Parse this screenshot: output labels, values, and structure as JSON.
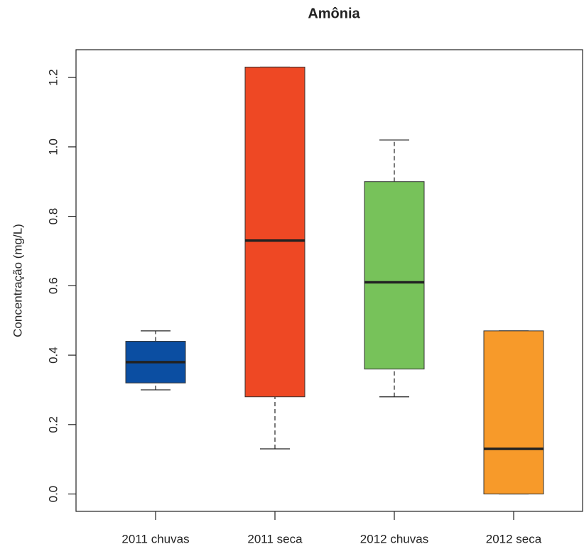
{
  "chart_data": {
    "type": "boxplot",
    "title": "Amônia",
    "y_label": "Concentração (mg/L)",
    "categories": [
      "2011 chuvas",
      "2011 seca",
      "2012 chuvas",
      "2012 seca"
    ],
    "series": [
      {
        "color": "#0b4ea2",
        "whisker_low": 0.3,
        "q1": 0.32,
        "median": 0.38,
        "q3": 0.44,
        "whisker_high": 0.47
      },
      {
        "color": "#ee4824",
        "whisker_low": 0.13,
        "q1": 0.28,
        "median": 0.73,
        "q3": 1.23,
        "whisker_high": 1.23
      },
      {
        "color": "#77c25a",
        "whisker_low": 0.28,
        "q1": 0.36,
        "median": 0.61,
        "q3": 0.9,
        "whisker_high": 1.02
      },
      {
        "color": "#f79a2a",
        "whisker_low": 0.0,
        "q1": 0.0,
        "median": 0.13,
        "q3": 0.47,
        "whisker_high": 0.47
      }
    ],
    "ylim": [
      -0.05,
      1.28
    ],
    "yticks": [
      {
        "value": 0,
        "label": "0.0"
      },
      {
        "value": 0.2,
        "label": "0.2"
      },
      {
        "value": 0.4,
        "label": "0.4"
      },
      {
        "value": 0.6,
        "label": "0.6"
      },
      {
        "value": 0.8,
        "label": "0.8"
      },
      {
        "value": 1.0,
        "label": "1.0"
      },
      {
        "value": 1.2,
        "label": "1.2"
      }
    ]
  }
}
